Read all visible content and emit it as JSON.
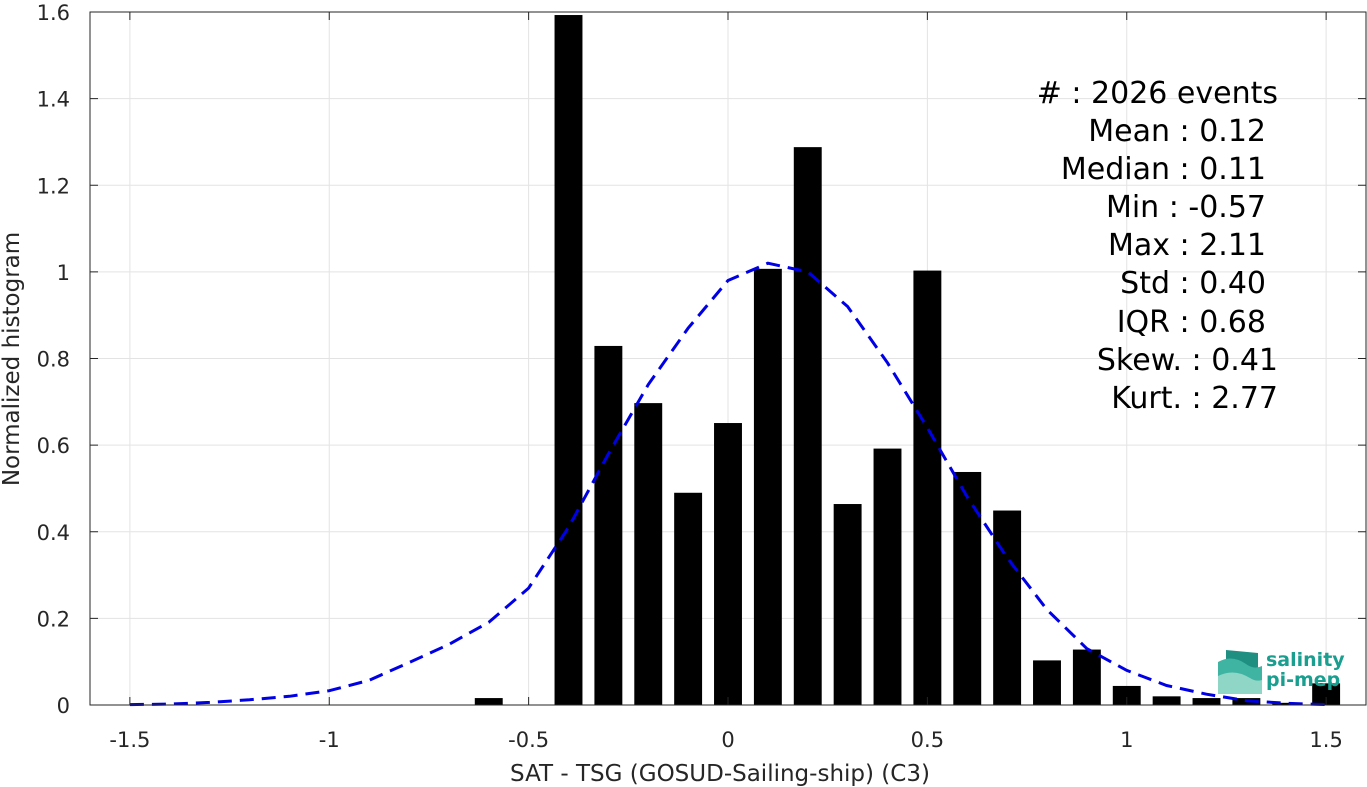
{
  "chart_data": {
    "type": "bar",
    "xlabel": "SAT - TSG (GOSUD-Sailing-ship) (C3)",
    "ylabel": "Normalized histogram",
    "xlim": [
      -1.6,
      1.6
    ],
    "ylim": [
      0,
      1.6
    ],
    "x_ticks": [
      -1.5,
      -1,
      -0.5,
      0,
      0.5,
      1,
      1.5
    ],
    "x_tick_labels": [
      "-1.5",
      "-1",
      "-0.5",
      "0",
      "0.5",
      "1",
      "1.5"
    ],
    "y_ticks": [
      0,
      0.2,
      0.4,
      0.6,
      0.8,
      1,
      1.2,
      1.4,
      1.6
    ],
    "y_tick_labels": [
      "0",
      "0.2",
      "0.4",
      "0.6",
      "0.8",
      "1",
      "1.2",
      "1.4",
      "1.6"
    ],
    "grid": true,
    "bar_width": 0.07,
    "bar_color": "#000000",
    "bins": {
      "x": [
        -0.6,
        -0.4,
        -0.3,
        -0.2,
        -0.1,
        0.0,
        0.1,
        0.2,
        0.3,
        0.4,
        0.5,
        0.6,
        0.7,
        0.8,
        0.9,
        1.0,
        1.1,
        1.2,
        1.3,
        1.4,
        1.5
      ],
      "values": [
        0.016,
        1.593,
        0.829,
        0.697,
        0.49,
        0.651,
        1.007,
        1.288,
        0.464,
        0.592,
        1.003,
        0.538,
        0.449,
        0.103,
        0.128,
        0.044,
        0.02,
        0.016,
        0.016,
        0.005,
        0.05
      ]
    },
    "fit_curve": {
      "style": "dashed",
      "color": "#0000e6",
      "x": [
        -1.5,
        -1.4,
        -1.3,
        -1.2,
        -1.1,
        -1.0,
        -0.9,
        -0.8,
        -0.7,
        -0.6,
        -0.5,
        -0.4,
        -0.3,
        -0.2,
        -0.1,
        0.0,
        0.1,
        0.2,
        0.3,
        0.4,
        0.5,
        0.6,
        0.7,
        0.8,
        0.9,
        1.0,
        1.1,
        1.2,
        1.3,
        1.4,
        1.5
      ],
      "y": [
        0.001,
        0.002,
        0.006,
        0.012,
        0.02,
        0.033,
        0.057,
        0.098,
        0.14,
        0.191,
        0.27,
        0.41,
        0.58,
        0.74,
        0.87,
        0.98,
        1.02,
        1.0,
        0.92,
        0.79,
        0.64,
        0.48,
        0.34,
        0.22,
        0.13,
        0.08,
        0.045,
        0.025,
        0.01,
        0.004,
        0.001
      ]
    }
  },
  "stats": {
    "count": "#  : 2026 events",
    "mean": "Mean : 0.12",
    "median": "Median : 0.11",
    "min": "Min : -0.57",
    "max": "Max : 2.11",
    "std": "Std : 0.40",
    "iqr": "IQR : 0.68",
    "skew": "Skew. : 0.41",
    "kurt": "Kurt. : 2.77"
  },
  "logo": {
    "line1": "salinity",
    "line2": "pi-mep",
    "color": "#1a9e8f"
  }
}
